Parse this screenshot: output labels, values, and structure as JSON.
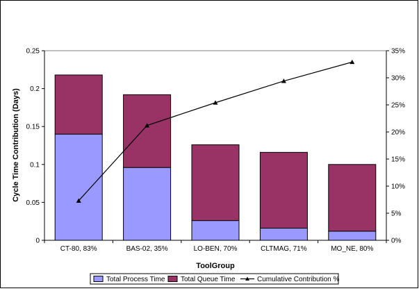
{
  "chart_data": {
    "type": "bar",
    "stacked": true,
    "title": "",
    "xlabel": "ToolGroup",
    "ylabel": "Cycle Time Contribution (Days)",
    "categories": [
      "CT-80, 83%",
      "BAS-02, 35%",
      "LO-BEN, 70%",
      "CLTMAG, 71%",
      "MO_NE, 80%"
    ],
    "series": [
      {
        "name": "Total Process Time",
        "axis": "left",
        "kind": "bar",
        "color": "#9999FF",
        "values": [
          0.14,
          0.096,
          0.026,
          0.016,
          0.012
        ]
      },
      {
        "name": "Total Queue Time",
        "axis": "left",
        "kind": "bar",
        "color": "#993366",
        "values": [
          0.078,
          0.096,
          0.1,
          0.1,
          0.088
        ]
      },
      {
        "name": "Cumulative Contribution %",
        "axis": "right",
        "kind": "line",
        "color": "#000000",
        "values": [
          7.3,
          21.2,
          25.4,
          29.4,
          32.9
        ]
      }
    ],
    "left_axis": {
      "ylim": [
        0,
        0.25
      ],
      "ticks": [
        0,
        0.05,
        0.1,
        0.15,
        0.2,
        0.25
      ],
      "tick_labels": [
        "0",
        "0.05",
        "0.1",
        "0.15",
        "0.2",
        "0.25"
      ]
    },
    "right_axis": {
      "ylim": [
        0,
        35
      ],
      "ticks": [
        0,
        5,
        10,
        15,
        20,
        25,
        30,
        35
      ],
      "tick_labels": [
        "0%",
        "5%",
        "10%",
        "15%",
        "20%",
        "25%",
        "30%",
        "35%"
      ]
    },
    "grid": false,
    "legend_position": "bottom"
  }
}
